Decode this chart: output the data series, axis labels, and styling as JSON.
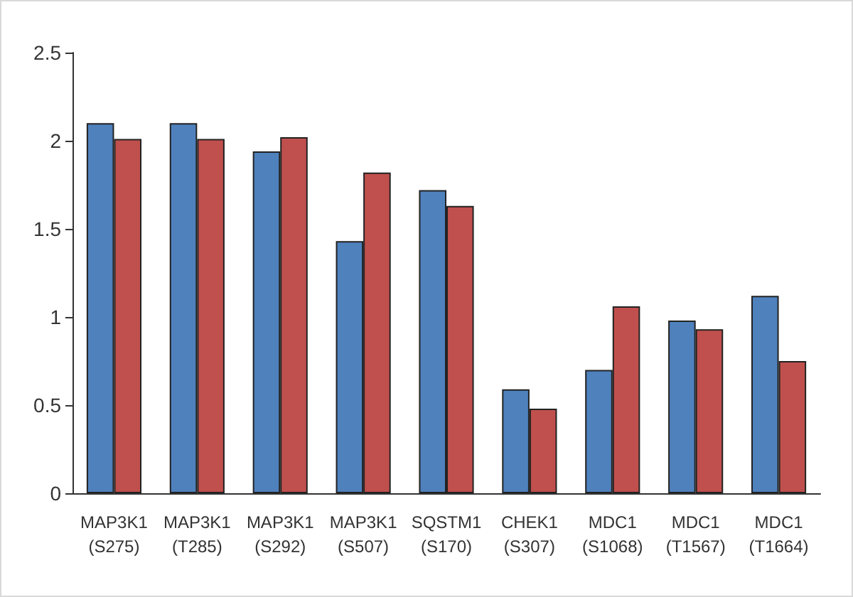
{
  "chart_data": {
    "type": "bar",
    "categories": [
      "MAP3K1\n(S275)",
      "MAP3K1\n(T285)",
      "MAP3K1\n(S292)",
      "MAP3K1\n(S507)",
      "SQSTM1\n(S170)",
      "CHEK1\n(S307)",
      "MDC1\n(S1068)",
      "MDC1\n(T1567)",
      "MDC1\n(T1664)"
    ],
    "series": [
      {
        "color": "#4f81bd",
        "values": [
          2.1,
          2.1,
          1.94,
          1.43,
          1.72,
          0.59,
          0.7,
          0.98,
          1.12
        ]
      },
      {
        "color": "#c0504d",
        "values": [
          2.01,
          2.01,
          2.02,
          1.82,
          1.63,
          0.48,
          1.06,
          0.93,
          0.75
        ]
      }
    ],
    "ylim": [
      0,
      2.5
    ],
    "yticks": [
      0,
      0.5,
      1,
      1.5,
      2,
      2.5
    ],
    "grid": false
  }
}
